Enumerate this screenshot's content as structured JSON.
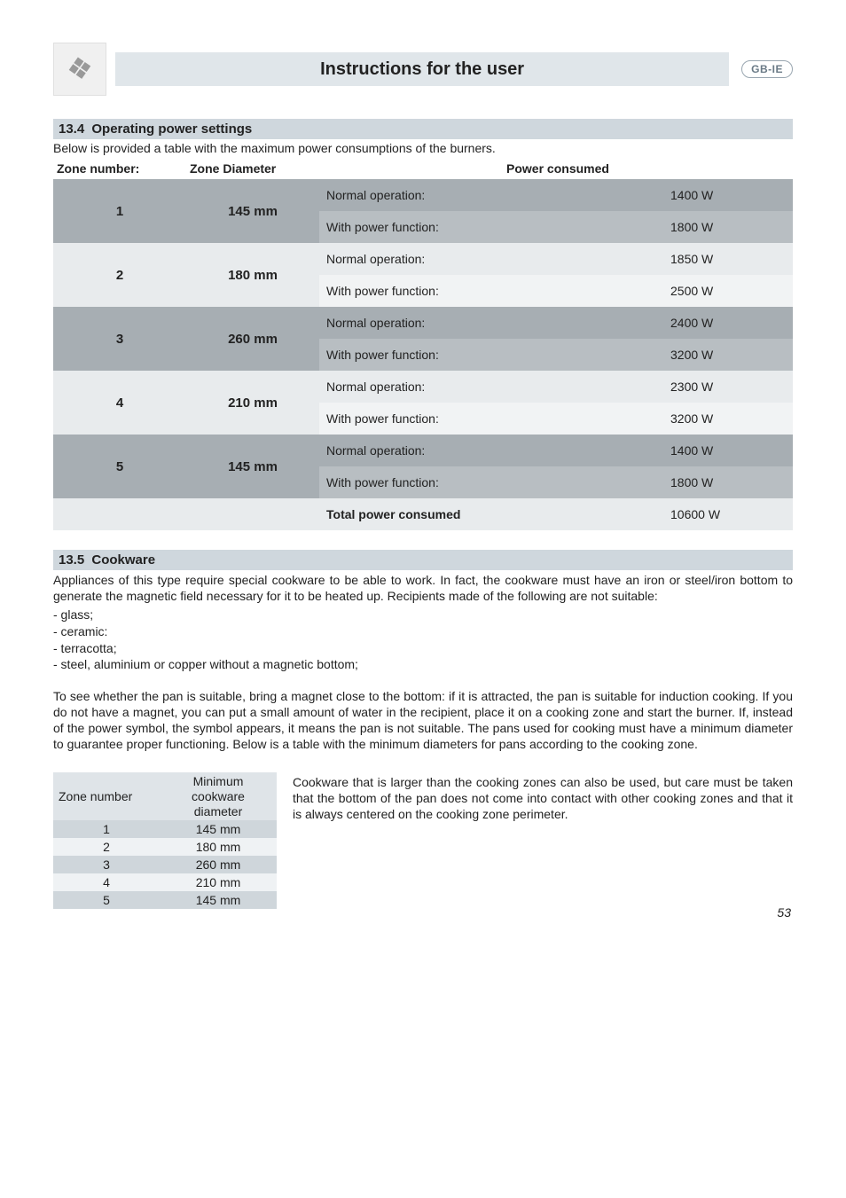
{
  "header": {
    "title": "Instructions for the user",
    "badge": "GB-IE"
  },
  "sec_power": {
    "number": "13.4",
    "title": "Operating power settings",
    "intro": "Below is provided a table with the maximum power consumptions of the burners.",
    "head_zone": "Zone number:",
    "head_dia": "Zone Diameter",
    "head_pc": "Power consumed",
    "label_normal": "Normal operation:",
    "label_power": "With power function:",
    "label_total": "Total power consumed",
    "total_val": "10600 W",
    "zones": [
      {
        "z": "1",
        "dia": "145 mm",
        "normal": "1400 W",
        "power": "1800 W",
        "shade": "dark"
      },
      {
        "z": "2",
        "dia": "180 mm",
        "normal": "1850 W",
        "power": "2500 W",
        "shade": "light"
      },
      {
        "z": "3",
        "dia": "260 mm",
        "normal": "2400 W",
        "power": "3200 W",
        "shade": "dark"
      },
      {
        "z": "4",
        "dia": "210 mm",
        "normal": "2300 W",
        "power": "3200 W",
        "shade": "light"
      },
      {
        "z": "5",
        "dia": "145 mm",
        "normal": "1400 W",
        "power": "1800 W",
        "shade": "dark"
      }
    ],
    "colors": {
      "dark_top": "#a7aeb3",
      "dark_bot": "#b8bec2",
      "light_top": "#e8ebed",
      "light_bot": "#f1f3f4",
      "total_bg": "#e8ebed"
    }
  },
  "sec_cookware": {
    "number": "13.5",
    "title": "Cookware",
    "para1": "Appliances of this type require special cookware to be able to work. In fact, the cookware must have an iron or steel/iron bottom to generate the magnetic field necessary for it to be heated up. Recipients made of the following are not suitable:",
    "bullets": [
      "- glass;",
      "- ceramic:",
      "- terracotta;",
      "- steel, aluminium or copper without a magnetic bottom;"
    ],
    "para2": "To see whether the pan is suitable, bring a magnet close to the bottom: if it is attracted, the pan is suitable for induction cooking. If you do not have a magnet, you can put a small amount of water in the recipient, place it on a cooking zone and start the burner. If, instead of the power symbol, the symbol appears, it means the pan is not suitable. The pans used for cooking must have a minimum diameter to guarantee proper functioning. Below is a table with the minimum diameters for pans according to the cooking zone.",
    "mtable": {
      "head_zn": "Zone number",
      "head_dia_l1": "Minimum cookware",
      "head_dia_l2": "diameter",
      "rows": [
        {
          "z": "1",
          "d": "145 mm",
          "shade": "dark"
        },
        {
          "z": "2",
          "d": "180 mm",
          "shade": "light"
        },
        {
          "z": "3",
          "d": "260 mm",
          "shade": "dark"
        },
        {
          "z": "4",
          "d": "210 mm",
          "shade": "light"
        },
        {
          "z": "5",
          "d": "145 mm",
          "shade": "dark"
        }
      ],
      "colors": {
        "dark": "#cfd6db",
        "light": "#eff2f4"
      }
    },
    "aside": "Cookware that is larger than the cooking zones can also be used, but care must be taken that the bottom of the pan does not come into contact with other cooking zones and that it is always centered on the cooking zone perimeter."
  },
  "page_number": "53"
}
